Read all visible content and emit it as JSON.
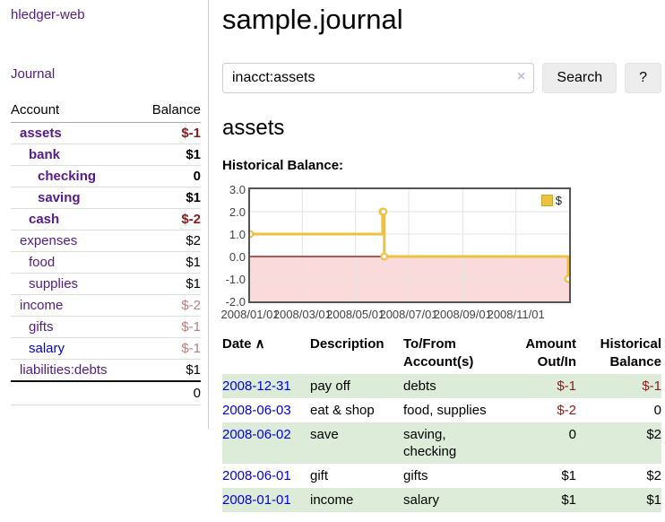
{
  "app": {
    "title": "hledger-web"
  },
  "sidebar": {
    "journal_label": "Journal",
    "accounts_table": {
      "account_header": "Account",
      "balance_header": "Balance",
      "rows": [
        {
          "name": "assets",
          "balance": "$-1",
          "depth": 1,
          "bold": true
        },
        {
          "name": "bank",
          "balance": "$1",
          "depth": 2,
          "bold": true
        },
        {
          "name": "checking",
          "balance": "0",
          "depth": 3,
          "bold": true
        },
        {
          "name": "saving",
          "balance": "$1",
          "depth": 3,
          "bold": true
        },
        {
          "name": "cash",
          "balance": "$-2",
          "depth": 2,
          "bold": true
        },
        {
          "name": "expenses",
          "balance": "$2",
          "depth": 1,
          "bold": false
        },
        {
          "name": "food",
          "balance": "$1",
          "depth": 2,
          "bold": false
        },
        {
          "name": "supplies",
          "balance": "$1",
          "depth": 2,
          "bold": false
        },
        {
          "name": "income",
          "balance": "$-2",
          "depth": 1,
          "bold": false
        },
        {
          "name": "gifts",
          "balance": "$-1",
          "depth": 2,
          "bold": false
        },
        {
          "name": "salary",
          "balance": "$-1",
          "depth": 2,
          "bold": false,
          "unvisited": true
        },
        {
          "name": "liabilities:debts",
          "balance": "$1",
          "depth": 1,
          "bold": false
        }
      ],
      "total": "0"
    }
  },
  "main": {
    "title": "sample.journal",
    "search": {
      "value": "inacct:assets",
      "clear_icon": "×",
      "button_label": "Search",
      "help_label": "?"
    },
    "account_heading": "assets"
  },
  "chart_data": {
    "type": "line",
    "title": "Historical Balance:",
    "xlim": [
      "2008-01-01",
      "2009-01-01"
    ],
    "ylim": [
      -2,
      3
    ],
    "y_ticks": [
      "3.0",
      "2.0",
      "1.0",
      "0.0",
      "-1.0",
      "-2.0"
    ],
    "x_ticks": [
      "2008/01/01",
      "2008/03/01",
      "2008/05/01",
      "2008/07/01",
      "2008/09/01",
      "2008/11/01"
    ],
    "grid": true,
    "legend": {
      "label": "$",
      "position": "top-right"
    },
    "colors": {
      "series": "#edc240",
      "negative_region": "#fadada",
      "zero_line": "#800000",
      "grid": "#e3e3e3",
      "border": "#545454"
    },
    "series": [
      {
        "name": "$",
        "steps": true,
        "points": [
          [
            "2008-01-01",
            1
          ],
          [
            "2008-06-01",
            2
          ],
          [
            "2008-06-02",
            2
          ],
          [
            "2008-06-03",
            0
          ],
          [
            "2008-12-31",
            -1
          ]
        ]
      }
    ]
  },
  "register_table": {
    "headers": [
      {
        "label": "Date",
        "sort_icon": "∧",
        "align": "left"
      },
      {
        "label": "Description",
        "align": "left"
      },
      {
        "label": "To/From Account(s)",
        "align": "left"
      },
      {
        "label": "Amount Out/In",
        "align": "right"
      },
      {
        "label": "Historical Balance",
        "align": "right"
      }
    ],
    "rows": [
      {
        "date": "2008-12-31",
        "description": "pay off",
        "accounts": "debts",
        "amount": "$-1",
        "balance": "$-1"
      },
      {
        "date": "2008-06-03",
        "description": "eat & shop",
        "accounts": "food, supplies",
        "amount": "$-2",
        "balance": "0"
      },
      {
        "date": "2008-06-02",
        "description": "save",
        "accounts": "saving, checking",
        "amount": "0",
        "balance": "$2"
      },
      {
        "date": "2008-06-01",
        "description": "gift",
        "accounts": "gifts",
        "amount": "$1",
        "balance": "$2"
      },
      {
        "date": "2008-01-01",
        "description": "income",
        "accounts": "salary",
        "amount": "$1",
        "balance": "$1"
      }
    ]
  }
}
